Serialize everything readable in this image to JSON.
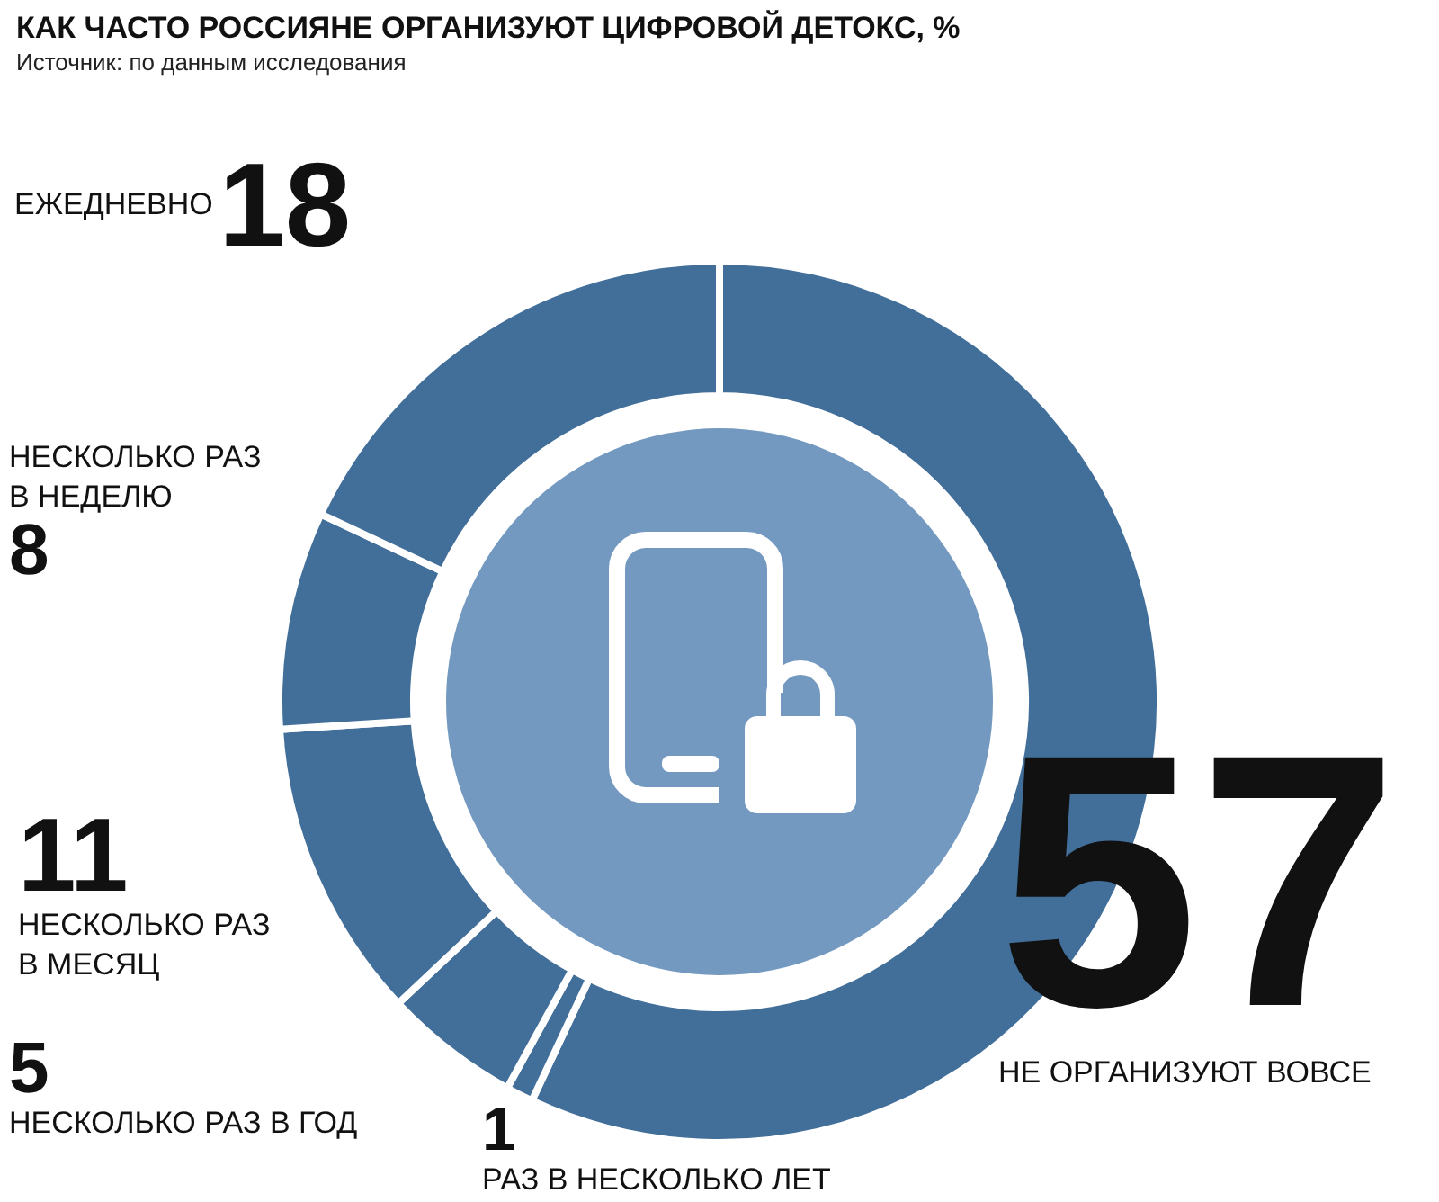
{
  "chart_data": {
    "type": "donut",
    "title": "КАК ЧАСТО РОССИЯНЕ ОРГАНИЗУЮТ ЦИФРОВОЙ ДЕТОКС, %",
    "subtitle": "Источник: по данным исследования",
    "categories": [
      "НЕ ОРГАНИЗУЮТ ВОВСЕ",
      "РАЗ В НЕСКОЛЬКО ЛЕТ",
      "НЕСКОЛЬКО РАЗ В ГОД",
      "НЕСКОЛЬКО РАЗ В МЕСЯЦ",
      "НЕСКОЛЬКО РАЗ В НЕДЕЛЮ",
      "ЕЖЕДНЕВНО"
    ],
    "values": [
      57,
      1,
      5,
      11,
      8,
      18
    ],
    "colors": [
      "#426f9a",
      "#426f9a",
      "#426f9a",
      "#426f9a",
      "#426f9a",
      "#426f9a"
    ],
    "data_labels": true,
    "legend": false
  }
}
